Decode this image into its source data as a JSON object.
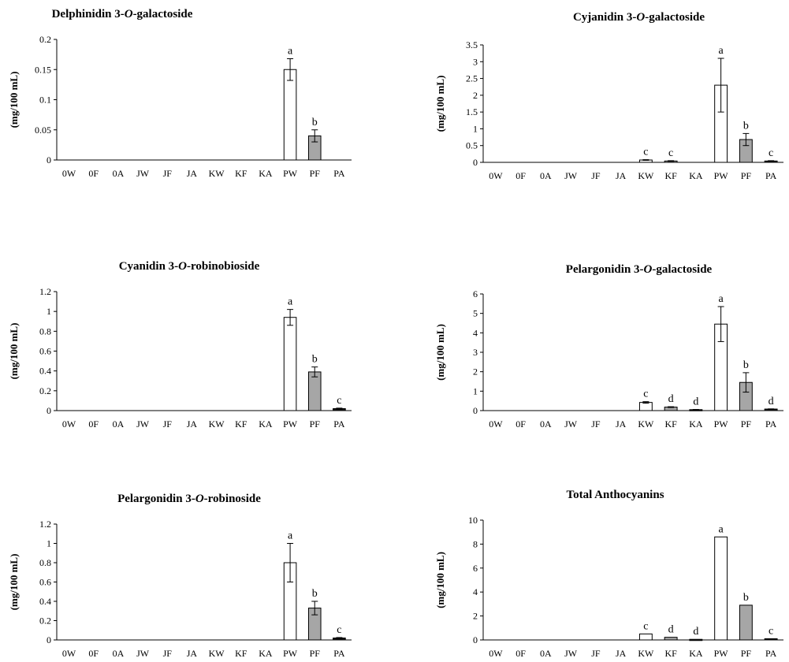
{
  "colors": {
    "white_bar": "#ffffff",
    "gray_bar": "#a6a6a6",
    "black_bar": "#1a1a1a",
    "axis": "#000000"
  },
  "chart_data": [
    {
      "type": "bar",
      "title": "Delphinidin 3-O-galactoside",
      "title_parts": [
        "Delphinidin 3-",
        "O",
        "-galactoside"
      ],
      "ylabel": "(mg/100 mL)",
      "xlabel": "",
      "ylim": [
        0,
        0.2
      ],
      "yticks": [
        "0",
        "0.05",
        "0.1",
        "0.15",
        "0.2"
      ],
      "ytick_values": [
        0,
        0.05,
        0.1,
        0.15,
        0.2
      ],
      "grid": false,
      "categories": [
        "0W",
        "0F",
        "0A",
        "JW",
        "JF",
        "JA",
        "KW",
        "KF",
        "KA",
        "PW",
        "PF",
        "PA"
      ],
      "values": [
        0,
        0,
        0,
        0,
        0,
        0,
        0,
        0,
        0,
        0.15,
        0.04,
        0
      ],
      "errors": [
        0,
        0,
        0,
        0,
        0,
        0,
        0,
        0,
        0,
        0.018,
        0.01,
        0
      ],
      "fills": [
        "white",
        "gray",
        "black",
        "white",
        "gray",
        "black",
        "white",
        "gray",
        "black",
        "white",
        "gray",
        "black"
      ],
      "significance": [
        "",
        "",
        "",
        "",
        "",
        "",
        "",
        "",
        "",
        "a",
        "b",
        ""
      ]
    },
    {
      "type": "bar",
      "title": "Cyjanidin 3-O-galactoside",
      "title_parts": [
        "Cyjanidin 3-",
        "O",
        "-galactoside"
      ],
      "ylabel": "(mg/100 mL)",
      "xlabel": "",
      "ylim": [
        0,
        3.5
      ],
      "yticks": [
        "0",
        "0.5",
        "1",
        "1.5",
        "2",
        "2.5",
        "3",
        "3.5"
      ],
      "ytick_values": [
        0,
        0.5,
        1,
        1.5,
        2,
        2.5,
        3,
        3.5
      ],
      "grid": false,
      "categories": [
        "0W",
        "0F",
        "0A",
        "JW",
        "JF",
        "JA",
        "KW",
        "KF",
        "KA",
        "PW",
        "PF",
        "PA"
      ],
      "values": [
        0,
        0,
        0,
        0,
        0,
        0,
        0.07,
        0.04,
        0,
        2.3,
        0.68,
        0.04
      ],
      "errors": [
        0,
        0,
        0,
        0,
        0,
        0,
        0.01,
        0.01,
        0,
        0.8,
        0.18,
        0.01
      ],
      "fills": [
        "white",
        "gray",
        "black",
        "white",
        "gray",
        "black",
        "white",
        "gray",
        "black",
        "white",
        "gray",
        "black"
      ],
      "significance": [
        "",
        "",
        "",
        "",
        "",
        "",
        "c",
        "c",
        "",
        "a",
        "b",
        "c"
      ]
    },
    {
      "type": "bar",
      "title": "Cyanidin 3-O-robinobioside",
      "title_parts": [
        "Cyanidin 3-",
        "O",
        "-robinobioside"
      ],
      "ylabel": "(mg/100 mL)",
      "xlabel": "",
      "ylim": [
        0,
        1.2
      ],
      "yticks": [
        "0",
        "0.2",
        "0.4",
        "0.6",
        "0.8",
        "1",
        "1.2"
      ],
      "ytick_values": [
        0,
        0.2,
        0.4,
        0.6,
        0.8,
        1,
        1.2
      ],
      "grid": false,
      "categories": [
        "0W",
        "0F",
        "0A",
        "JW",
        "JF",
        "JA",
        "KW",
        "KF",
        "KA",
        "PW",
        "PF",
        "PA"
      ],
      "values": [
        0,
        0,
        0,
        0,
        0,
        0,
        0,
        0,
        0,
        0.94,
        0.39,
        0.02
      ],
      "errors": [
        0,
        0,
        0,
        0,
        0,
        0,
        0,
        0,
        0,
        0.08,
        0.05,
        0.005
      ],
      "fills": [
        "white",
        "gray",
        "black",
        "white",
        "gray",
        "black",
        "white",
        "gray",
        "black",
        "white",
        "gray",
        "black"
      ],
      "significance": [
        "",
        "",
        "",
        "",
        "",
        "",
        "",
        "",
        "",
        "a",
        "b",
        "c"
      ]
    },
    {
      "type": "bar",
      "title": "Pelargonidin 3-O-galactoside",
      "title_parts": [
        "Pelargonidin 3-",
        "O",
        "-galactoside"
      ],
      "ylabel": "(mg/100 mL)",
      "xlabel": "",
      "ylim": [
        0,
        6
      ],
      "yticks": [
        "0",
        "1",
        "2",
        "3",
        "4",
        "5",
        "6"
      ],
      "ytick_values": [
        0,
        1,
        2,
        3,
        4,
        5,
        6
      ],
      "grid": false,
      "categories": [
        "0W",
        "0F",
        "0A",
        "JW",
        "JF",
        "JA",
        "KW",
        "KF",
        "KA",
        "PW",
        "PF",
        "PA"
      ],
      "values": [
        0,
        0,
        0,
        0,
        0,
        0,
        0.42,
        0.18,
        0.05,
        4.45,
        1.45,
        0.08
      ],
      "errors": [
        0,
        0,
        0,
        0,
        0,
        0,
        0.04,
        0.02,
        0.01,
        0.9,
        0.5,
        0.01
      ],
      "fills": [
        "white",
        "gray",
        "black",
        "white",
        "gray",
        "black",
        "white",
        "gray",
        "black",
        "white",
        "gray",
        "black"
      ],
      "significance": [
        "",
        "",
        "",
        "",
        "",
        "",
        "c",
        "d",
        "d",
        "a",
        "b",
        "d"
      ]
    },
    {
      "type": "bar",
      "title": "Pelargonidin 3-O-robinoside",
      "title_parts": [
        "Pelargonidin 3-",
        "O",
        "-robinoside"
      ],
      "ylabel": "(mg/100 mL)",
      "xlabel": "",
      "ylim": [
        0,
        1.2
      ],
      "yticks": [
        "0",
        "0.2",
        "0.4",
        "0.6",
        "0.8",
        "1",
        "1.2"
      ],
      "ytick_values": [
        0,
        0.2,
        0.4,
        0.6,
        0.8,
        1,
        1.2
      ],
      "grid": false,
      "categories": [
        "0W",
        "0F",
        "0A",
        "JW",
        "JF",
        "JA",
        "KW",
        "KF",
        "KA",
        "PW",
        "PF",
        "PA"
      ],
      "values": [
        0,
        0,
        0,
        0,
        0,
        0,
        0,
        0,
        0,
        0.8,
        0.33,
        0.02
      ],
      "errors": [
        0,
        0,
        0,
        0,
        0,
        0,
        0,
        0,
        0,
        0.2,
        0.07,
        0.005
      ],
      "fills": [
        "white",
        "gray",
        "black",
        "white",
        "gray",
        "black",
        "white",
        "gray",
        "black",
        "white",
        "gray",
        "black"
      ],
      "significance": [
        "",
        "",
        "",
        "",
        "",
        "",
        "",
        "",
        "",
        "a",
        "b",
        "c"
      ]
    },
    {
      "type": "bar",
      "title": "Total Anthocyanins",
      "title_parts": [
        "Total Anthocyanins",
        "",
        ""
      ],
      "ylabel": "(mg/100 mL)",
      "xlabel": "",
      "ylim": [
        0,
        10
      ],
      "yticks": [
        "0",
        "2",
        "4",
        "6",
        "8",
        "10"
      ],
      "ytick_values": [
        0,
        2,
        4,
        6,
        8,
        10
      ],
      "grid": false,
      "categories": [
        "0W",
        "0F",
        "0A",
        "JW",
        "JF",
        "JA",
        "KW",
        "KF",
        "KA",
        "PW",
        "PF",
        "PA"
      ],
      "values": [
        0,
        0,
        0,
        0,
        0,
        0,
        0.5,
        0.22,
        0.05,
        8.6,
        2.9,
        0.1
      ],
      "errors": [
        0,
        0,
        0,
        0,
        0,
        0,
        0,
        0,
        0,
        0,
        0,
        0
      ],
      "fills": [
        "white",
        "gray",
        "black",
        "white",
        "gray",
        "black",
        "white",
        "gray",
        "black",
        "white",
        "gray",
        "black"
      ],
      "significance": [
        "",
        "",
        "",
        "",
        "",
        "",
        "c",
        "d",
        "d",
        "a",
        "b",
        "c"
      ]
    }
  ]
}
